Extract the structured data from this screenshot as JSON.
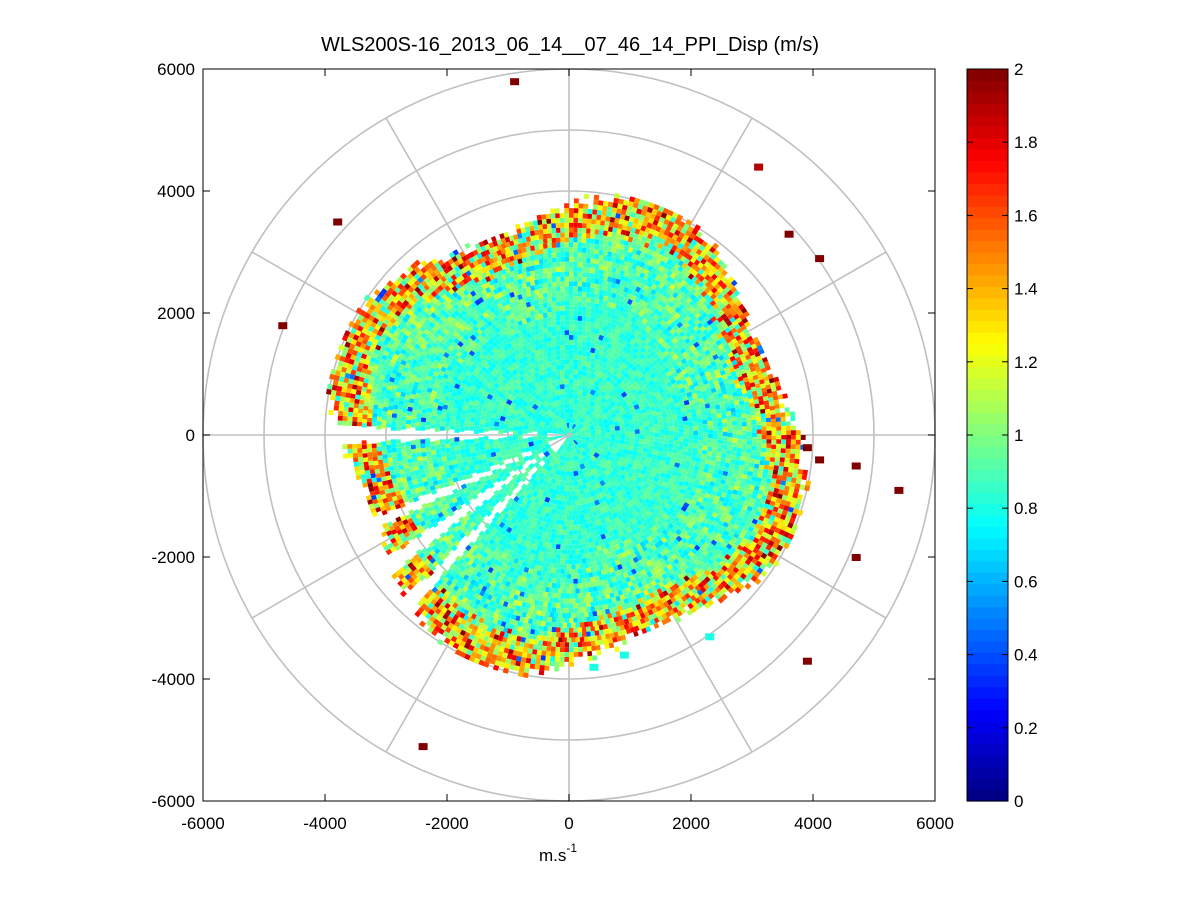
{
  "chart_data": {
    "type": "heatmap",
    "subtype": "polar-ppi-scan",
    "title": "WLS200S-16_2013_06_14__07_46_14_PPI_Disp (m/s)",
    "xlabel_base": "m.s",
    "xlabel_exponent": "-1",
    "ylabel": "",
    "xlim": [
      -6000,
      6000
    ],
    "ylim": [
      -6000,
      6000
    ],
    "xticks": [
      "-6000",
      "-4000",
      "-2000",
      "0",
      "2000",
      "4000",
      "6000"
    ],
    "yticks": [
      "6000",
      "4000",
      "2000",
      "0",
      "-2000",
      "-4000",
      "-6000"
    ],
    "xtick_values": [
      -6000,
      -4000,
      -2000,
      0,
      2000,
      4000,
      6000
    ],
    "ytick_values": [
      6000,
      4000,
      2000,
      0,
      -2000,
      -4000,
      -6000
    ],
    "polar_grid": {
      "rings": [
        1000,
        2000,
        3000,
        4000,
        5000,
        6000
      ],
      "spoke_angles_deg": [
        0,
        30,
        60,
        90,
        120,
        150,
        180,
        210,
        240,
        270,
        300,
        330
      ]
    },
    "colorbar": {
      "range": [
        0,
        2
      ],
      "ticks": [
        "2",
        "1.8",
        "1.6",
        "1.4",
        "1.2",
        "1",
        "0.8",
        "0.6",
        "0.4",
        "0.2",
        "0"
      ],
      "tick_values": [
        2,
        1.8,
        1.6,
        1.4,
        1.2,
        1,
        0.8,
        0.6,
        0.4,
        0.2,
        0
      ],
      "colormap": "jet"
    },
    "data_extent": {
      "max_range_m": 4000,
      "typical_value": 0.9,
      "edge_values": "1.1-2.0 near outer edge",
      "gaps_azimuth_deg": [
        [
          178,
          182
        ],
        [
          203,
          206
        ],
        [
          214,
          218
        ],
        [
          225,
          228
        ]
      ]
    },
    "outliers": [
      {
        "x": -900,
        "y": 5800,
        "v": 2.0
      },
      {
        "x": 3100,
        "y": 4400,
        "v": 1.9
      },
      {
        "x": 3600,
        "y": 3300,
        "v": 2.0
      },
      {
        "x": 4100,
        "y": 2900,
        "v": 2.0
      },
      {
        "x": -3800,
        "y": 3500,
        "v": 2.0
      },
      {
        "x": -4700,
        "y": 1800,
        "v": 2.0
      },
      {
        "x": 3900,
        "y": -200,
        "v": 2.0
      },
      {
        "x": 4100,
        "y": -400,
        "v": 2.0
      },
      {
        "x": 4700,
        "y": -500,
        "v": 2.0
      },
      {
        "x": 5400,
        "y": -900,
        "v": 2.0
      },
      {
        "x": 4700,
        "y": -2000,
        "v": 2.0
      },
      {
        "x": 3900,
        "y": -3700,
        "v": 2.0
      },
      {
        "x": -2400,
        "y": -5100,
        "v": 2.0
      },
      {
        "x": 2300,
        "y": -3300,
        "v": 0.8
      },
      {
        "x": 900,
        "y": -3600,
        "v": 0.8
      },
      {
        "x": 400,
        "y": -3800,
        "v": 0.8
      }
    ]
  }
}
